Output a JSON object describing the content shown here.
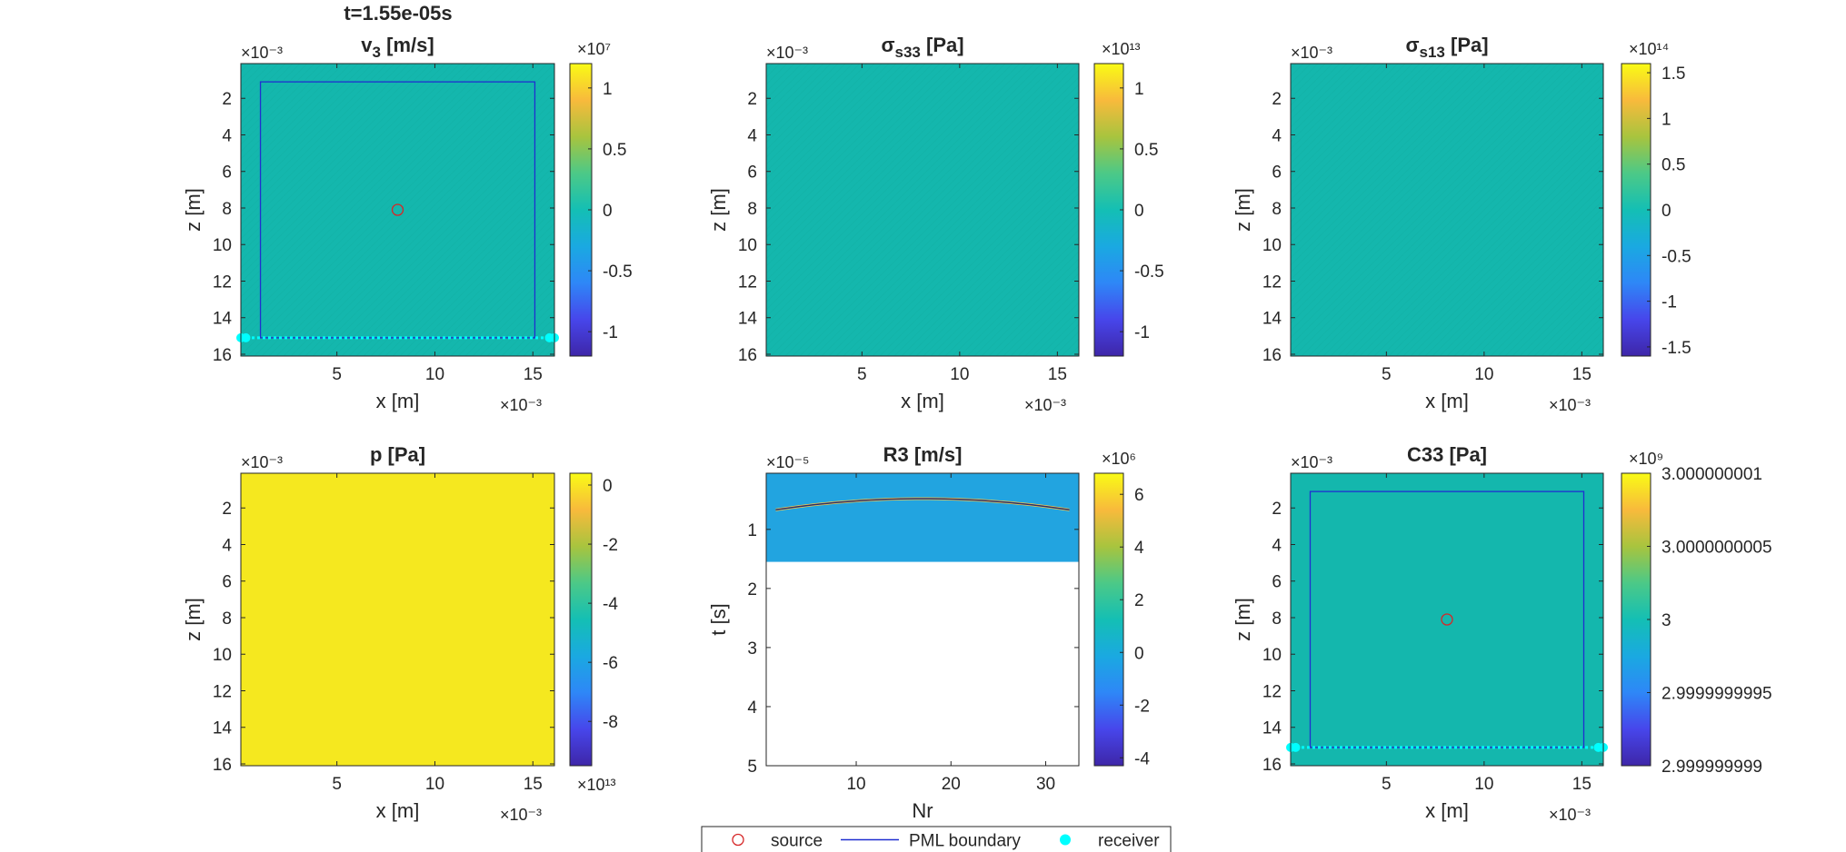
{
  "figure": {
    "suptitle": "t=1.55e-05s",
    "background": "#ffffff",
    "legend": {
      "placement": "bottom-center",
      "entries": [
        {
          "label": "source",
          "marker": "open-circle",
          "color": "#d62728"
        },
        {
          "label": "PML boundary",
          "marker": "line",
          "color": "#1f2fd0"
        },
        {
          "label": "receiver",
          "marker": "filled-circle",
          "color": "#00ffff"
        }
      ]
    }
  },
  "chart_data": [
    {
      "id": "v3",
      "type": "heatmap",
      "title": "v₃ [m/s]",
      "title_base": "v",
      "title_sub": "3",
      "title_rest": " [m/s]",
      "xlabel": "x [m]",
      "ylabel": "z [m]",
      "xlim": [
        0.1,
        16.1
      ],
      "ylim": [
        0.1,
        16.1
      ],
      "y_reversed": true,
      "scale_label": "×10⁻³",
      "xticks": [
        5,
        10,
        15
      ],
      "xticklabels": [
        "5",
        "10",
        "15"
      ],
      "yticks": [
        2,
        4,
        6,
        8,
        10,
        12,
        14,
        16
      ],
      "yticklabels": [
        "2",
        "4",
        "6",
        "8",
        "10",
        "12",
        "14",
        "16"
      ],
      "fill_color": "#14b7ad",
      "pattern": "faint interference fringes",
      "show_pml": true,
      "pml_box": [
        1.1,
        1.1,
        15.1,
        15.1
      ],
      "source": [
        8.1,
        8.1
      ],
      "receivers": {
        "z": 15.1,
        "x_start": 0.1,
        "x_end": 16.1,
        "count": 64
      },
      "colorbar": {
        "exponent": "×10⁷",
        "range": [
          -1.2,
          1.2
        ],
        "ticks": [
          -1,
          -0.5,
          0,
          0.5,
          1
        ],
        "ticklabels": [
          "-1",
          "-0.5",
          "0",
          "0.5",
          "1"
        ]
      }
    },
    {
      "id": "sigma_s33",
      "type": "heatmap",
      "title": "σs33 [Pa]",
      "title_base": "σ",
      "title_sub": "s33",
      "title_rest": " [Pa]",
      "xlabel": "x [m]",
      "ylabel": "z [m]",
      "xlim": [
        0.1,
        16.1
      ],
      "ylim": [
        0.1,
        16.1
      ],
      "y_reversed": true,
      "scale_label": "×10⁻³",
      "xticks": [
        5,
        10,
        15
      ],
      "xticklabels": [
        "5",
        "10",
        "15"
      ],
      "yticks": [
        2,
        4,
        6,
        8,
        10,
        12,
        14,
        16
      ],
      "yticklabels": [
        "2",
        "4",
        "6",
        "8",
        "10",
        "12",
        "14",
        "16"
      ],
      "fill_color": "#14b7ad",
      "pattern": "faint interference fringes",
      "show_pml": false,
      "colorbar": {
        "exponent": "×10¹³",
        "range": [
          -1.2,
          1.2
        ],
        "ticks": [
          -1,
          -0.5,
          0,
          0.5,
          1
        ],
        "ticklabels": [
          "-1",
          "-0.5",
          "0",
          "0.5",
          "1"
        ]
      }
    },
    {
      "id": "sigma_s13",
      "type": "heatmap",
      "title": "σs13 [Pa]",
      "title_base": "σ",
      "title_sub": "s13",
      "title_rest": " [Pa]",
      "xlabel": "x [m]",
      "ylabel": "z [m]",
      "xlim": [
        0.1,
        16.1
      ],
      "ylim": [
        0.1,
        16.1
      ],
      "y_reversed": true,
      "scale_label": "×10⁻³",
      "xticks": [
        5,
        10,
        15
      ],
      "xticklabels": [
        "5",
        "10",
        "15"
      ],
      "yticks": [
        2,
        4,
        6,
        8,
        10,
        12,
        14,
        16
      ],
      "yticklabels": [
        "2",
        "4",
        "6",
        "8",
        "10",
        "12",
        "14",
        "16"
      ],
      "fill_color": "#14b7ad",
      "pattern": "faint interference fringes",
      "show_pml": false,
      "colorbar": {
        "exponent": "×10¹⁴",
        "range": [
          -1.6,
          1.6
        ],
        "ticks": [
          -1.5,
          -1,
          -0.5,
          0,
          0.5,
          1,
          1.5
        ],
        "ticklabels": [
          "-1.5",
          "-1",
          "-0.5",
          "0",
          "0.5",
          "1",
          "1.5"
        ]
      }
    },
    {
      "id": "p",
      "type": "heatmap",
      "title": "p [Pa]",
      "title_base": "p [Pa]",
      "title_sub": "",
      "title_rest": "",
      "xlabel": "x [m]",
      "ylabel": "z [m]",
      "xlim": [
        0.1,
        16.1
      ],
      "ylim": [
        0.1,
        16.1
      ],
      "y_reversed": true,
      "scale_label": "×10⁻³",
      "xticks": [
        5,
        10,
        15
      ],
      "xticklabels": [
        "5",
        "10",
        "15"
      ],
      "yticks": [
        2,
        4,
        6,
        8,
        10,
        12,
        14,
        16
      ],
      "yticklabels": [
        "2",
        "4",
        "6",
        "8",
        "10",
        "12",
        "14",
        "16"
      ],
      "fill_color": "#f5e81f",
      "pattern": "uniform",
      "show_pml": false,
      "colorbar": {
        "exponent": "×10¹³",
        "exponent_position": "bottom",
        "range": [
          -9.5,
          0.4
        ],
        "ticks": [
          -8,
          -6,
          -4,
          -2,
          0
        ],
        "ticklabels": [
          "-8",
          "-6",
          "-4",
          "-2",
          "0"
        ]
      }
    },
    {
      "id": "R3",
      "type": "heatmap",
      "title": "R3 [m/s]",
      "title_base": "R3 [m/s]",
      "title_sub": "",
      "title_rest": "",
      "xlabel": "Nr",
      "ylabel": "t [s]",
      "xlim": [
        0.5,
        33.5
      ],
      "ylim": [
        0.05,
        5
      ],
      "y_reversed": true,
      "scale_label": "×10⁻⁵",
      "xticks": [
        10,
        20,
        30
      ],
      "xticklabels": [
        "10",
        "20",
        "30"
      ],
      "yticks": [
        1,
        2,
        3,
        4,
        5
      ],
      "yticklabels": [
        "1",
        "2",
        "3",
        "4",
        "5"
      ],
      "fill_color": "#22a4e0",
      "filled_until_t": 1.55,
      "wavefront": {
        "x_start": 1.5,
        "x_end": 32.5,
        "t_edge": 0.67,
        "t_center": 0.48,
        "x_center": 17
      },
      "show_pml": false,
      "colorbar": {
        "exponent": "×10⁶",
        "range": [
          -4.3,
          6.8
        ],
        "ticks": [
          -4,
          -2,
          0,
          2,
          4,
          6
        ],
        "ticklabels": [
          "-4",
          "-2",
          "0",
          "2",
          "4",
          "6"
        ]
      }
    },
    {
      "id": "C33",
      "type": "heatmap",
      "title": "C33 [Pa]",
      "title_base": "C33 [Pa]",
      "title_sub": "",
      "title_rest": "",
      "xlabel": "x [m]",
      "ylabel": "z [m]",
      "xlim": [
        0.1,
        16.1
      ],
      "ylim": [
        0.1,
        16.1
      ],
      "y_reversed": true,
      "scale_label": "×10⁻³",
      "xticks": [
        5,
        10,
        15
      ],
      "xticklabels": [
        "5",
        "10",
        "15"
      ],
      "yticks": [
        2,
        4,
        6,
        8,
        10,
        12,
        14,
        16
      ],
      "yticklabels": [
        "2",
        "4",
        "6",
        "8",
        "10",
        "12",
        "14",
        "16"
      ],
      "fill_color": "#14b7ad",
      "pattern": "uniform",
      "show_pml": true,
      "pml_box": [
        1.1,
        1.1,
        15.1,
        15.1
      ],
      "source": [
        8.1,
        8.1
      ],
      "receivers": {
        "z": 15.1,
        "x_start": 0.1,
        "x_end": 16.1,
        "count": 64
      },
      "colorbar": {
        "exponent": "×10⁹",
        "range": [
          2.999999999,
          3.000000001
        ],
        "ticks": [
          2.999999999,
          2.9999999995,
          3,
          3.0000000005,
          3.000000001
        ],
        "ticklabels": [
          "2.999999999",
          "2.9999999995",
          "3",
          "3.0000000005",
          "3.000000001"
        ]
      }
    }
  ]
}
